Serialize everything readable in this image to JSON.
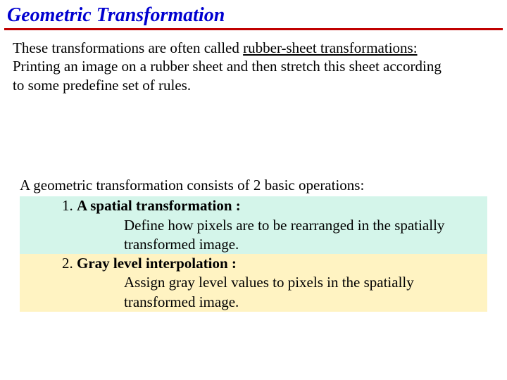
{
  "title": "Geometric Transformation",
  "intro": {
    "line1a": "These transformations are often called ",
    "line1b": "rubber-sheet transformations:",
    "line2": "Printing an image on a rubber sheet and then stretch this sheet according",
    "line3": "to some predefine set of rules."
  },
  "ops": {
    "lead": "A geometric transformation consists of 2 basic operations:",
    "op1_num": "1. ",
    "op1_title": "A spatial transformation :",
    "op1_desc1": "Define how pixels are to be rearranged in the spatially",
    "op1_desc2": "transformed image.",
    "op2_num": "2. ",
    "op2_title": "Gray level interpolation :",
    "op2_desc1": "Assign gray level values to pixels in the spatially",
    "op2_desc2": "transformed image."
  },
  "colors": {
    "title_color": "#0000d0",
    "rule_color": "#c00000",
    "bg1": "#d4f5ea",
    "bg2": "#fff3c2"
  }
}
